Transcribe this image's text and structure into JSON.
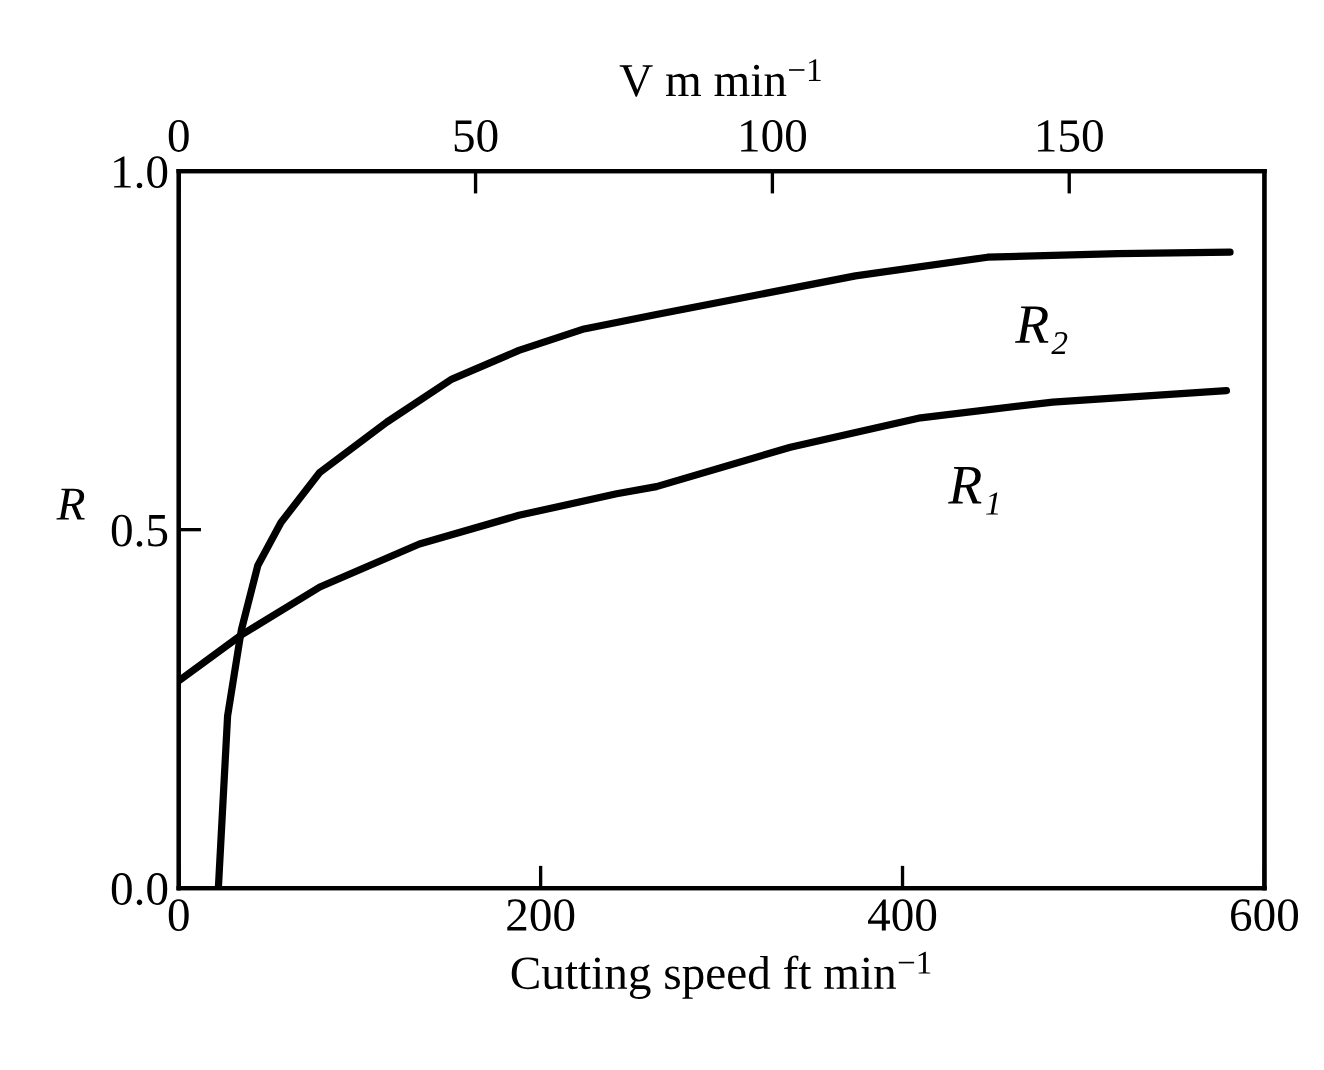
{
  "chart_data": {
    "type": "line",
    "xlabel": "Cutting speed ft min$^{−1}$",
    "ylabel": "R",
    "x2label": "V m min$^{−1}$",
    "xlim": [
      0,
      600
    ],
    "xticks": [
      0,
      200,
      400,
      600
    ],
    "x2lim": [
      0,
      182.88
    ],
    "x2ticks": [
      0,
      50,
      100,
      150
    ],
    "ylim": [
      0,
      1
    ],
    "yticks": [
      {
        "value": 0,
        "label": "0.0"
      },
      {
        "value": 0.5,
        "label": "0.5"
      },
      {
        "value": 1,
        "label": "1.0"
      }
    ],
    "grid": false,
    "legend": false,
    "marker": "none",
    "line_style": "solid",
    "series": [
      {
        "name": "R₁",
        "color": "#000000",
        "x": [
          0,
          34.6,
          78,
          133,
          188,
          242,
          264,
          338,
          410,
          483,
          579
        ],
        "values": [
          0.289,
          0.353,
          0.42,
          0.48,
          0.52,
          0.55,
          0.56,
          0.615,
          0.656,
          0.678,
          0.694
        ]
      },
      {
        "name": "R₂",
        "color": "#000000",
        "x": [
          21.9,
          27,
          34.6,
          43.7,
          56.5,
          78,
          115,
          151,
          188,
          224,
          264,
          374,
          447,
          519,
          581
        ],
        "values": [
          0,
          0.24,
          0.36,
          0.45,
          0.51,
          0.58,
          0.65,
          0.71,
          0.75,
          0.78,
          0.8,
          0.854,
          0.88,
          0.885,
          0.887
        ]
      }
    ]
  }
}
